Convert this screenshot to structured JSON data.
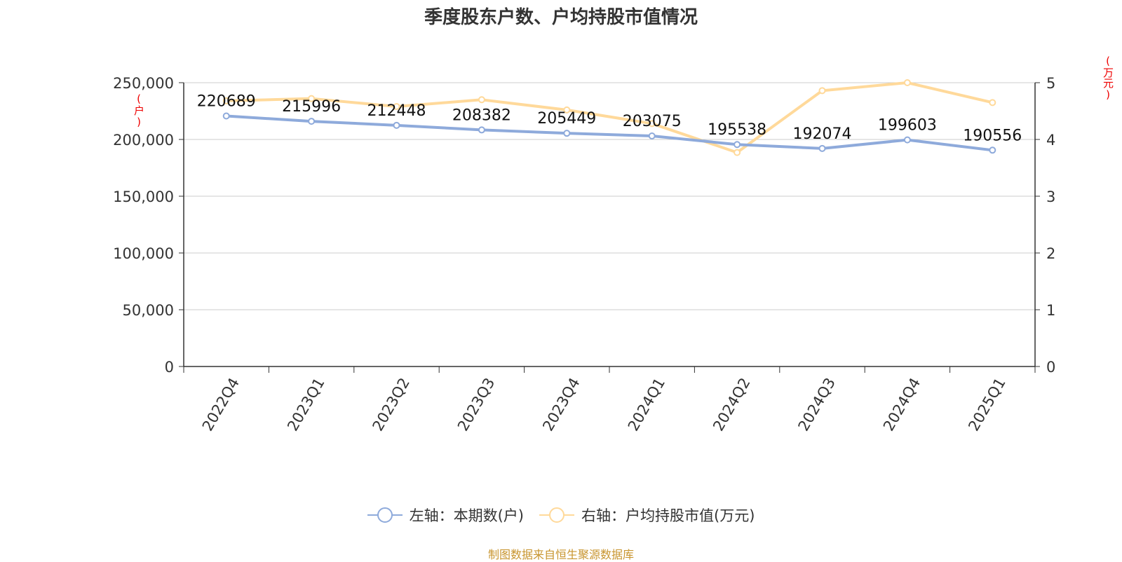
{
  "chart_data": {
    "type": "line",
    "title": "季度股东户数、户均持股市值情况",
    "categories": [
      "2022Q4",
      "2023Q1",
      "2023Q2",
      "2023Q3",
      "2023Q4",
      "2024Q1",
      "2024Q2",
      "2024Q3",
      "2024Q4",
      "2025Q1"
    ],
    "series": [
      {
        "name": "左轴：本期数(户)",
        "axis": "left",
        "color": "#8eaadb",
        "values": [
          220689,
          215996,
          212448,
          208382,
          205449,
          203075,
          195538,
          192074,
          199603,
          190556
        ],
        "data_labels": [
          "220689",
          "215996",
          "212448",
          "208382",
          "205449",
          "203075",
          "195538",
          "192074",
          "199603",
          "190556"
        ]
      },
      {
        "name": "右轴：户均持股市值(万元)",
        "axis": "right",
        "color": "#ffd99a",
        "values": [
          4.68,
          4.72,
          4.58,
          4.7,
          4.52,
          4.28,
          3.77,
          4.86,
          5.0,
          4.65
        ]
      }
    ],
    "left_axis": {
      "unit": "(户)",
      "ylim": [
        0,
        250000
      ],
      "ticks": [
        0,
        50000,
        100000,
        150000,
        200000,
        250000
      ],
      "tick_labels": [
        "0",
        "50,000",
        "100,000",
        "150,000",
        "200,000",
        "250,000"
      ]
    },
    "right_axis": {
      "unit": "(万元)",
      "ylim": [
        0,
        5
      ],
      "ticks": [
        0,
        1,
        2,
        3,
        4,
        5
      ],
      "tick_labels": [
        "0",
        "1",
        "2",
        "3",
        "4",
        "5"
      ]
    },
    "grid": true,
    "legend_position": "bottom-center"
  },
  "source_text": "制图数据来自恒生聚源数据库",
  "colors": {
    "source_text": "#c8952f",
    "unit_text": "#ee0000",
    "grid": "#cccccc",
    "axis": "#333333"
  }
}
